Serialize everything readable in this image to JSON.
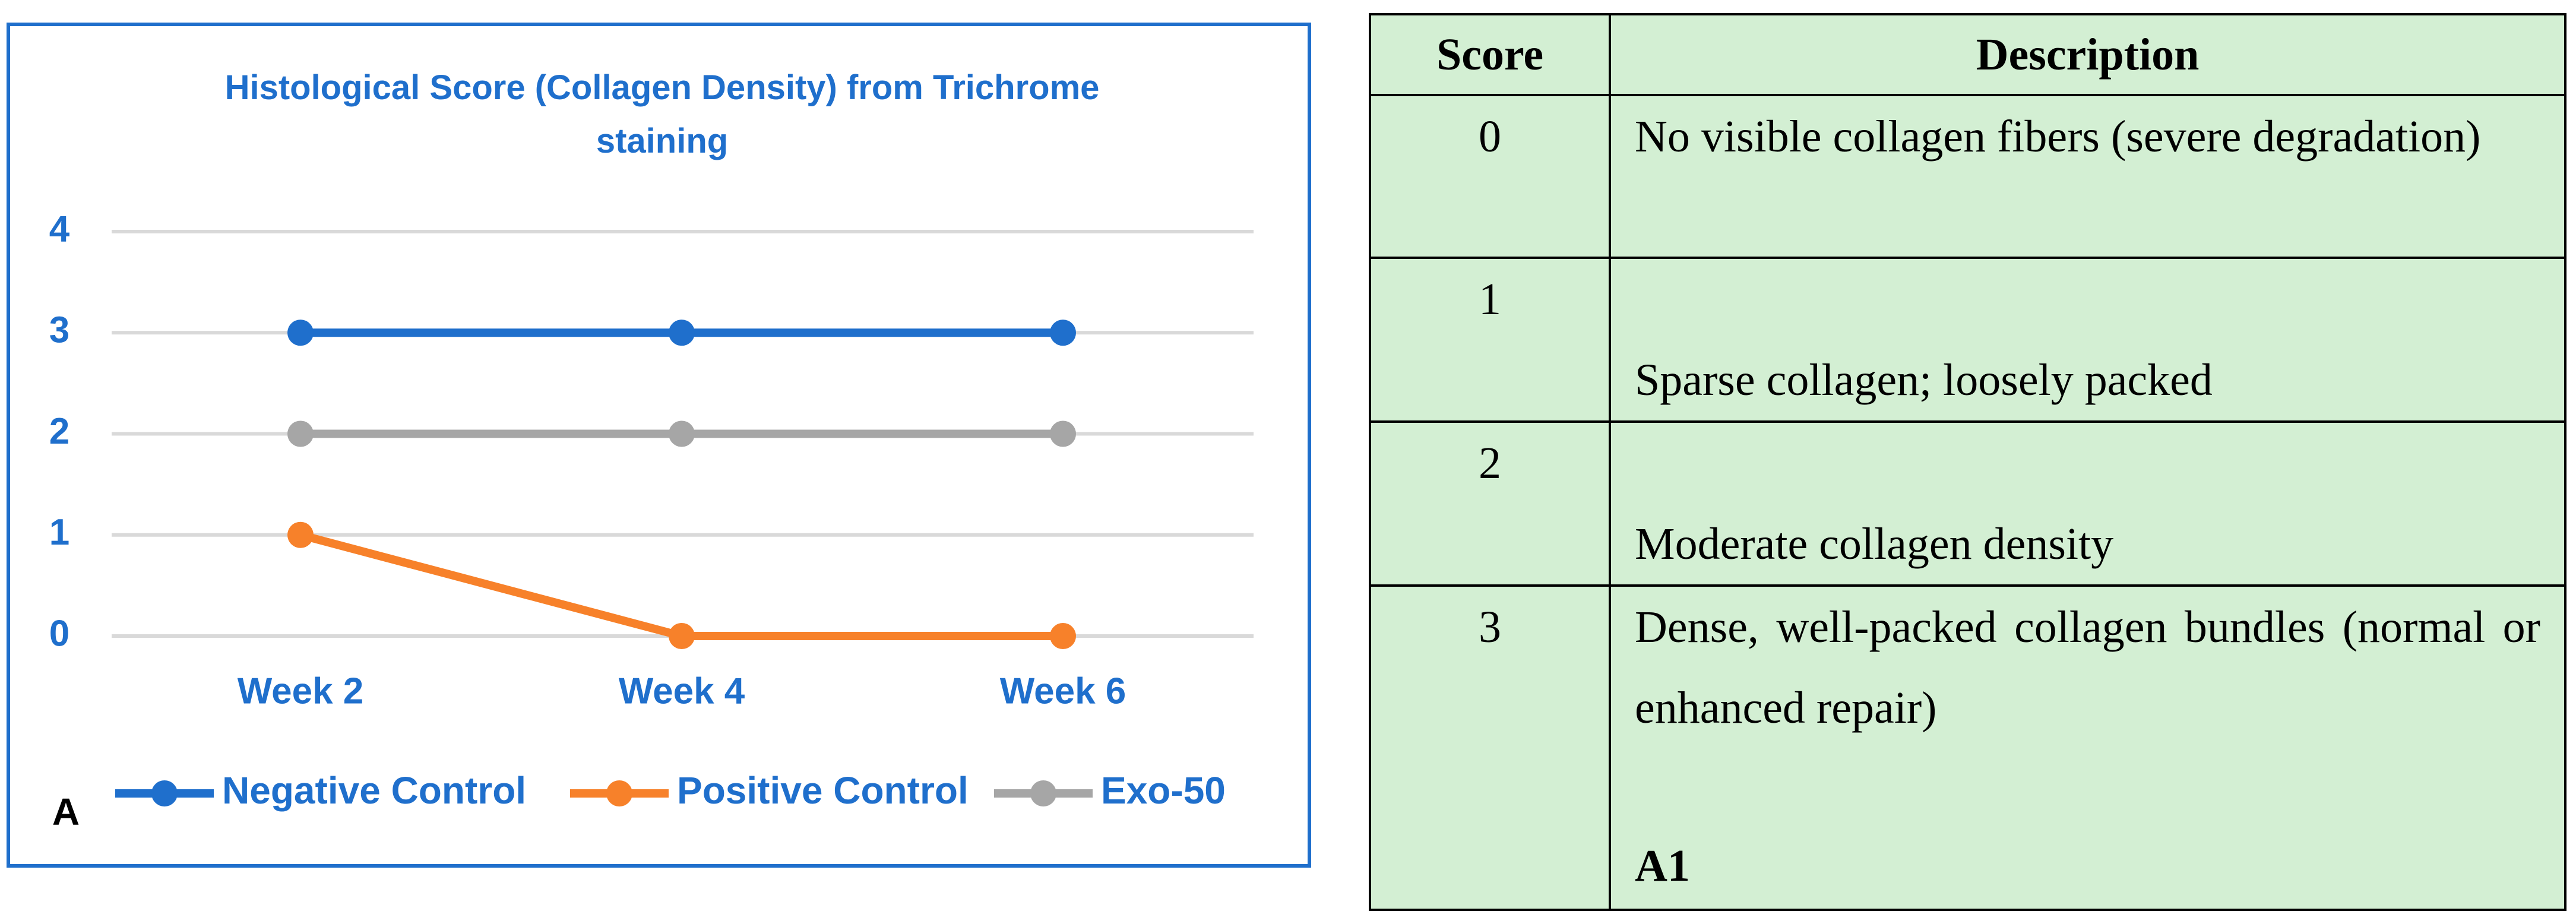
{
  "chart_data": {
    "type": "line",
    "title": "Histological Score (Collagen Density) from Trichrome staining",
    "categories": [
      "Week 2",
      "Week 4",
      "Week 6"
    ],
    "series": [
      {
        "name": "Negative Control",
        "color": "#1f6fcc",
        "values": [
          3,
          3,
          3
        ]
      },
      {
        "name": "Positive Control",
        "color": "#f7812a",
        "values": [
          1,
          0,
          0
        ]
      },
      {
        "name": "Exo-50",
        "color": "#a6a6a6",
        "values": [
          2,
          2,
          2
        ]
      }
    ],
    "ylim": [
      0,
      4
    ],
    "yticks": [
      0,
      1,
      2,
      3,
      4
    ],
    "grid": true,
    "legend": "bottom",
    "panel_label": "A"
  },
  "table": {
    "header": [
      "Score",
      "Description"
    ],
    "rows": [
      [
        0,
        "No visible collagen fibers (severe degradation)"
      ],
      [
        1,
        "Sparse collagen; loosely packed"
      ],
      [
        2,
        "Moderate collagen density"
      ],
      [
        3,
        "Dense, well-packed collagen bundles (normal or enhanced repair)"
      ]
    ],
    "panel_label": "A1"
  }
}
